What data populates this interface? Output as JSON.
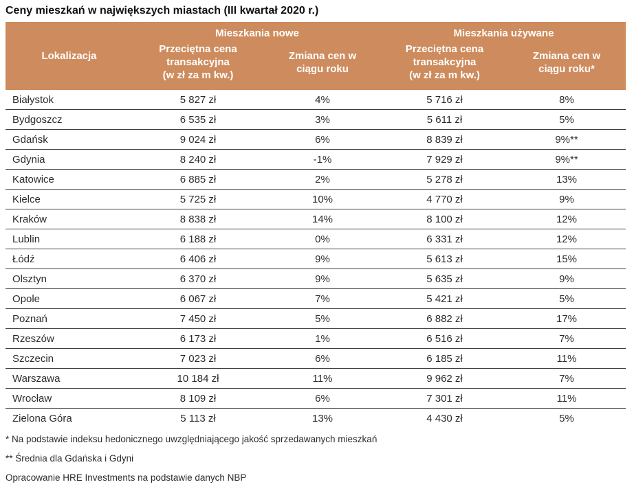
{
  "title": "Ceny mieszkań w największych miastach (III kwartał 2020 r.)",
  "table": {
    "group_headers": {
      "new": "Mieszkania nowe",
      "used": "Mieszkania używane"
    },
    "columns": {
      "location": "Lokalizacja",
      "price_lines": [
        "Przeciętna cena",
        "transakcyjna",
        "(w zł za m kw.)"
      ],
      "change_new_lines": [
        "Zmiana cen w",
        "ciągu roku"
      ],
      "change_used_lines": [
        "Zmiana cen w",
        "ciągu roku*"
      ]
    },
    "rows": [
      {
        "city": "Białystok",
        "new_price": "5 827 zł",
        "new_change": "4%",
        "used_price": "5 716 zł",
        "used_change": "8%"
      },
      {
        "city": "Bydgoszcz",
        "new_price": "6 535 zł",
        "new_change": "3%",
        "used_price": "5 611 zł",
        "used_change": "5%"
      },
      {
        "city": "Gdańsk",
        "new_price": "9 024 zł",
        "new_change": "6%",
        "used_price": "8 839 zł",
        "used_change": "9%**"
      },
      {
        "city": "Gdynia",
        "new_price": "8 240 zł",
        "new_change": "-1%",
        "used_price": "7 929 zł",
        "used_change": "9%**"
      },
      {
        "city": "Katowice",
        "new_price": "6 885 zł",
        "new_change": "2%",
        "used_price": "5 278 zł",
        "used_change": "13%"
      },
      {
        "city": "Kielce",
        "new_price": "5 725 zł",
        "new_change": "10%",
        "used_price": "4 770 zł",
        "used_change": "9%"
      },
      {
        "city": "Kraków",
        "new_price": "8 838 zł",
        "new_change": "14%",
        "used_price": "8 100 zł",
        "used_change": "12%"
      },
      {
        "city": "Lublin",
        "new_price": "6 188 zł",
        "new_change": "0%",
        "used_price": "6 331 zł",
        "used_change": "12%"
      },
      {
        "city": "Łódź",
        "new_price": "6 406 zł",
        "new_change": "9%",
        "used_price": "5 613 zł",
        "used_change": "15%"
      },
      {
        "city": "Olsztyn",
        "new_price": "6 370 zł",
        "new_change": "9%",
        "used_price": "5 635 zł",
        "used_change": "9%"
      },
      {
        "city": "Opole",
        "new_price": "6 067 zł",
        "new_change": "7%",
        "used_price": "5 421 zł",
        "used_change": "5%"
      },
      {
        "city": "Poznań",
        "new_price": "7 450 zł",
        "new_change": "5%",
        "used_price": "6 882 zł",
        "used_change": "17%"
      },
      {
        "city": "Rzeszów",
        "new_price": "6 173 zł",
        "new_change": "1%",
        "used_price": "6 516 zł",
        "used_change": "7%"
      },
      {
        "city": "Szczecin",
        "new_price": "7 023 zł",
        "new_change": "6%",
        "used_price": "6 185 zł",
        "used_change": "11%"
      },
      {
        "city": "Warszawa",
        "new_price": "10 184 zł",
        "new_change": "11%",
        "used_price": "9 962 zł",
        "used_change": "7%"
      },
      {
        "city": "Wrocław",
        "new_price": "8 109 zł",
        "new_change": "6%",
        "used_price": "7 301 zł",
        "used_change": "11%"
      },
      {
        "city": "Zielona Góra",
        "new_price": "5 113 zł",
        "new_change": "13%",
        "used_price": "4 430 zł",
        "used_change": "5%"
      }
    ]
  },
  "footnotes": [
    "* Na podstawie indeksu hedonicznego uwzględniającego jakość sprzedawanych mieszkań",
    "** Średnia dla Gdańska i Gdyni",
    "Opracowanie HRE Investments na podstawie danych NBP"
  ],
  "colors": {
    "header_bg": "#CE8C5E",
    "header_text": "#FFFFFF",
    "row_border": "#3C3C3C"
  }
}
